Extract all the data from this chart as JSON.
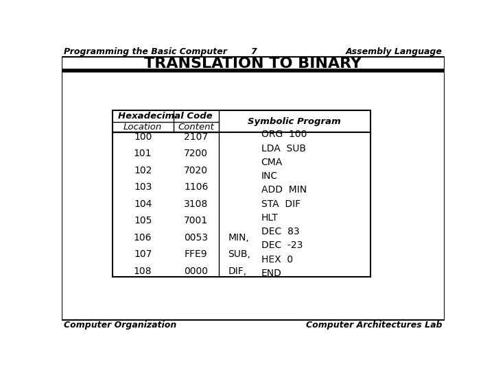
{
  "title": "TRANSLATION TO BINARY",
  "header_left": "Programming the Basic Computer",
  "header_center": "7",
  "header_right": "Assembly Language",
  "footer_left": "Computer Organization",
  "footer_right": "Computer Architectures Lab",
  "hex_header1": "Hexadecimal Code",
  "hex_col1": "Location",
  "hex_col2": "Content",
  "sym_header": "Symbolic Program",
  "locations": [
    "100",
    "101",
    "102",
    "103",
    "104",
    "105",
    "106",
    "107",
    "108"
  ],
  "contents": [
    "2107",
    "7200",
    "7020",
    "1106",
    "3108",
    "7001",
    "0053",
    "FFE9",
    "0000"
  ],
  "labels": [
    "",
    "",
    "",
    "",
    "",
    "",
    "MIN,",
    "SUB,",
    "DIF,"
  ],
  "symbolic": [
    "ORG  100",
    "LDA  SUB",
    "CMA",
    "INC",
    "ADD  MIN",
    "STA  DIF",
    "HLT",
    "DEC  83",
    "DEC  -23",
    "HEX  0",
    "END"
  ],
  "bg_color": "#ffffff"
}
